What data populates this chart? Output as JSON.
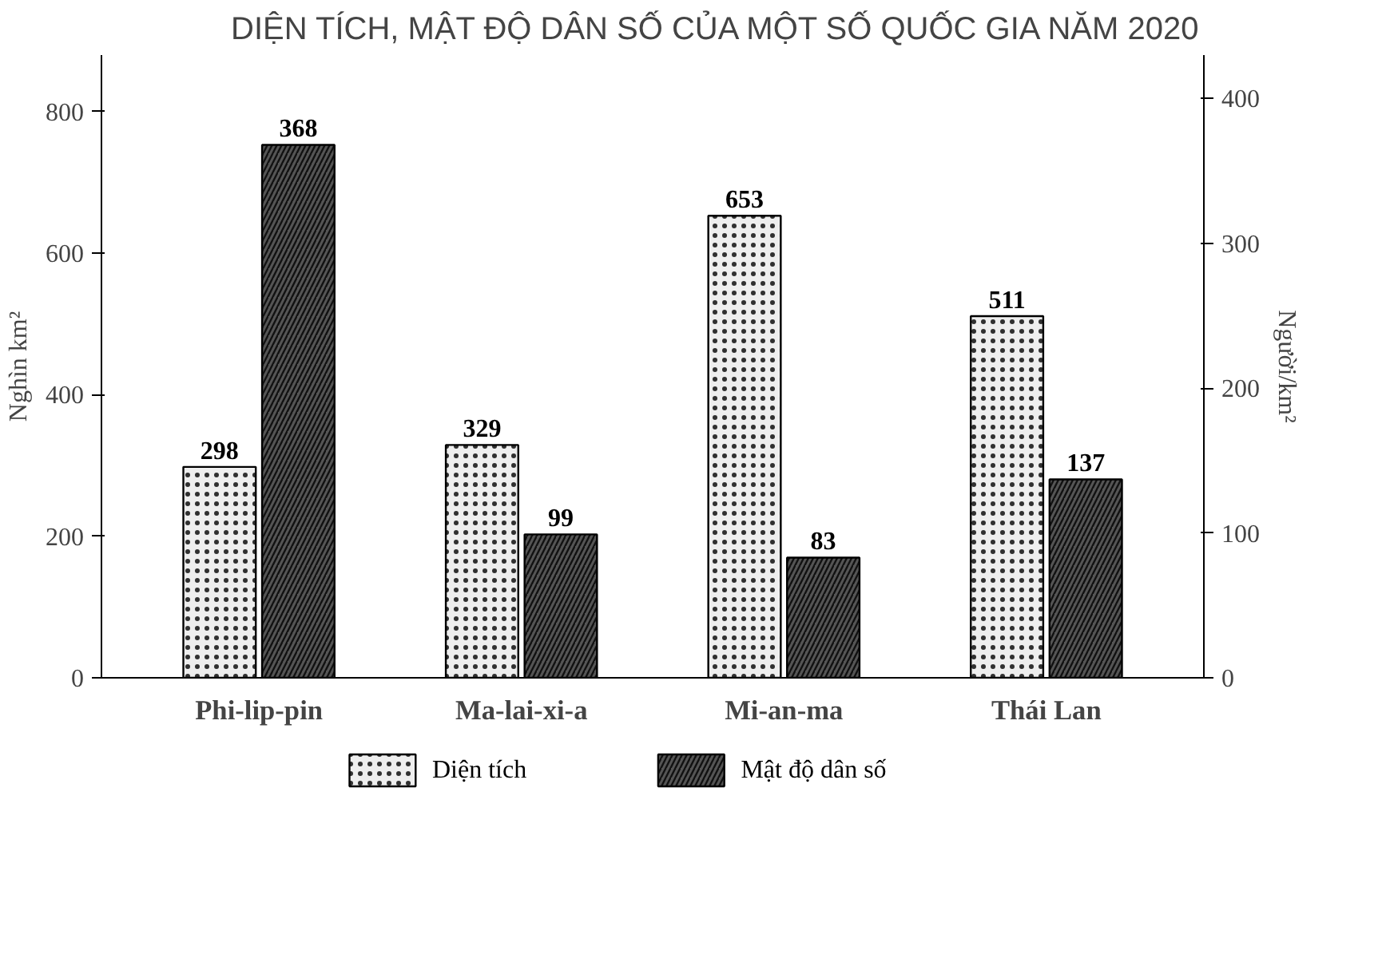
{
  "chart_data": {
    "type": "bar",
    "title": "DIỆN TÍCH, MẬT ĐỘ DÂN SỐ CỦA MỘT SỐ QUỐC GIA NĂM 2020",
    "categories": [
      "Phi-lip-pin",
      "Ma-lai-xi-a",
      "Mi-an-ma",
      "Thái Lan"
    ],
    "series": [
      {
        "name": "Diện tích",
        "color": "#eeeeee",
        "values": [
          298,
          329,
          653,
          511
        ]
      },
      {
        "name": "Mật độ dân số",
        "color": "#555555",
        "values": [
          368,
          99,
          83,
          137
        ],
        "axis": "y2"
      }
    ],
    "ylabel": "Nghìn km²",
    "y2label": "Người/km²",
    "ylim": [
      0,
      880
    ],
    "yticks": [
      0,
      200,
      400,
      600,
      800
    ],
    "y2lim": [
      0,
      430
    ],
    "y2ticks": [
      0,
      100,
      200,
      300,
      400
    ],
    "data_labels": true,
    "grid": false,
    "legend": "bottom"
  }
}
